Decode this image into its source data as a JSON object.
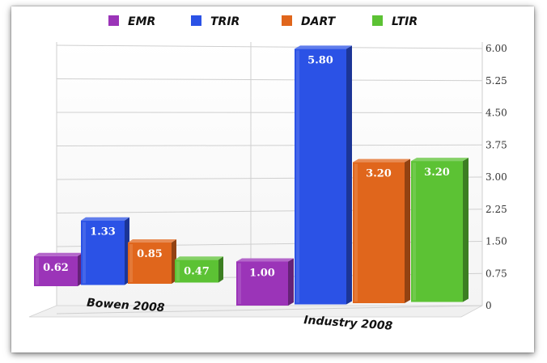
{
  "chart_data": {
    "type": "bar",
    "categories": [
      "Bowen 2008",
      "Industry 2008"
    ],
    "series": [
      {
        "name": "EMR",
        "values": [
          0.62,
          1.0
        ],
        "color": "#9b34b8"
      },
      {
        "name": "TRIR",
        "values": [
          1.33,
          5.8
        ],
        "color": "#2b52e6"
      },
      {
        "name": "DART",
        "values": [
          0.85,
          3.2
        ],
        "color": "#e0661c"
      },
      {
        "name": "LTIR",
        "values": [
          0.47,
          3.2
        ],
        "color": "#5cc234"
      }
    ],
    "value_labels": [
      [
        "0.62",
        "1.00"
      ],
      [
        "1.33",
        "5.80"
      ],
      [
        "0.85",
        "3.20"
      ],
      [
        "0.47",
        "3.20"
      ]
    ],
    "y_ticks": [
      "0",
      "0.75",
      "1.50",
      "2.25",
      "3.00",
      "3.75",
      "4.50",
      "5.25",
      "6.00"
    ],
    "ylim": [
      0,
      6
    ],
    "legend_position": "top",
    "grid": true
  }
}
